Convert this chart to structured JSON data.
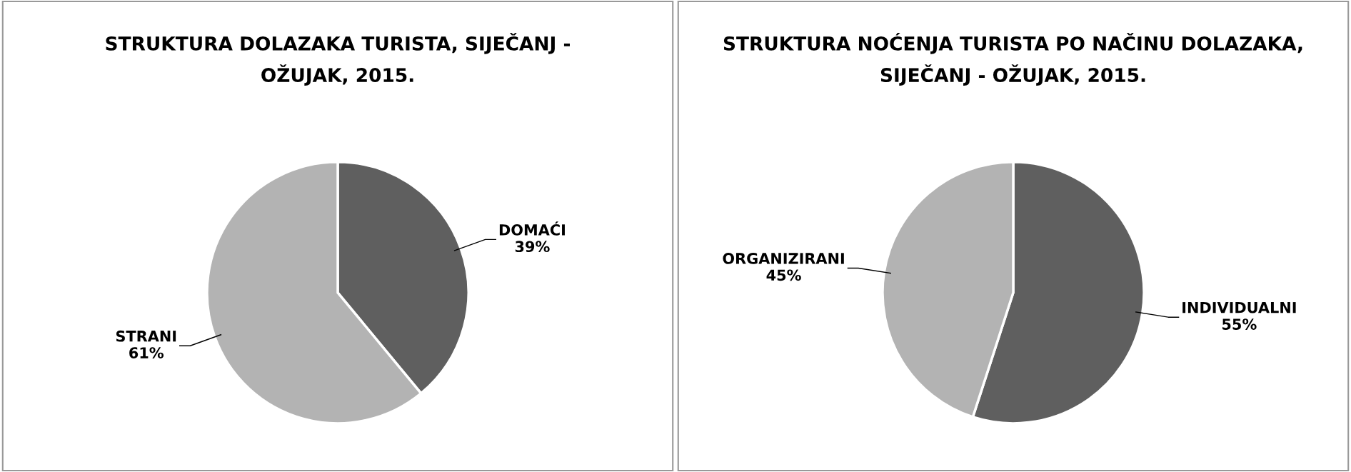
{
  "chart_data": [
    {
      "type": "pie",
      "title": "STRUKTURA DOLAZAKA TURISTA, SIJEČANJ -\nOŽUJAK, 2015.",
      "categories": [
        "DOMAĆI",
        "STRANI"
      ],
      "values": [
        39,
        61
      ],
      "value_labels": [
        "39%",
        "61%"
      ],
      "colors": [
        "#5f5f5f",
        "#b3b3b3"
      ],
      "legend": false
    },
    {
      "type": "pie",
      "title": "STRUKTURA NOĆENJA TURISTA PO NAČINU DOLAZAKA,\nSIJEČANJ - OŽUJAK, 2015.",
      "categories": [
        "INDIVIDUALNI",
        "ORGANIZIRANI"
      ],
      "values": [
        55,
        45
      ],
      "value_labels": [
        "55%",
        "45%"
      ],
      "colors": [
        "#5f5f5f",
        "#b3b3b3"
      ],
      "legend": false
    }
  ]
}
